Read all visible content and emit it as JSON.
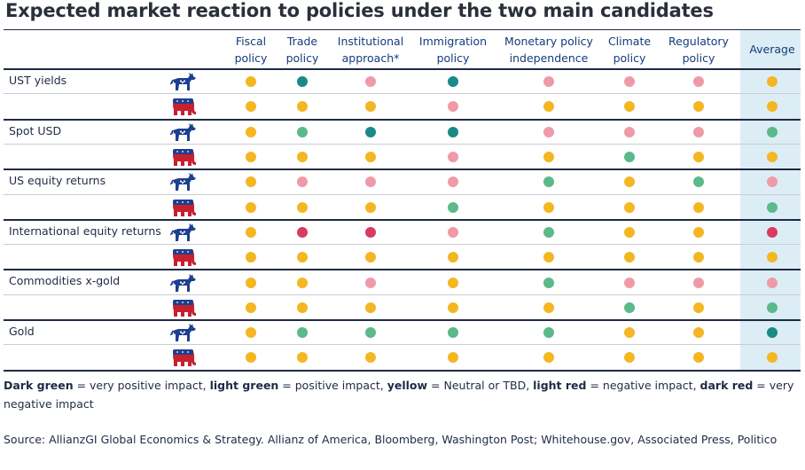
{
  "title": "Expected market reaction to policies under the two main candidates",
  "colors": {
    "dark_green": "#1a8a86",
    "light_green": "#5bb98a",
    "yellow": "#f4b622",
    "light_red": "#ee9aa7",
    "dark_red": "#d93a60",
    "democrat_blue": "#1d3f8f",
    "republican_red": "#c8202e"
  },
  "chart_data": {
    "type": "table",
    "columns": [
      "Fiscal\npolicy",
      "Trade\npolicy",
      "Institutional\napproach*",
      "Immigration\npolicy",
      "Monetary policy\nindependence",
      "Climate\npolicy",
      "Regulatory\npolicy",
      "Average"
    ],
    "rows": [
      {
        "label": "UST yields",
        "democrat": [
          "yellow",
          "dark_green",
          "light_red",
          "dark_green",
          "light_red",
          "light_red",
          "light_red",
          "yellow"
        ],
        "republican": [
          "yellow",
          "yellow",
          "yellow",
          "light_red",
          "yellow",
          "yellow",
          "yellow",
          "yellow"
        ]
      },
      {
        "label": "Spot USD",
        "democrat": [
          "yellow",
          "light_green",
          "dark_green",
          "dark_green",
          "light_red",
          "light_red",
          "light_red",
          "light_green"
        ],
        "republican": [
          "yellow",
          "yellow",
          "yellow",
          "light_red",
          "yellow",
          "light_green",
          "yellow",
          "yellow"
        ]
      },
      {
        "label": "US equity returns",
        "democrat": [
          "yellow",
          "light_red",
          "light_red",
          "light_red",
          "light_green",
          "yellow",
          "light_green",
          "light_red"
        ],
        "republican": [
          "yellow",
          "yellow",
          "yellow",
          "light_green",
          "yellow",
          "yellow",
          "yellow",
          "light_green"
        ]
      },
      {
        "label": "International equity returns",
        "democrat": [
          "yellow",
          "dark_red",
          "dark_red",
          "light_red",
          "light_green",
          "yellow",
          "yellow",
          "dark_red"
        ],
        "republican": [
          "yellow",
          "yellow",
          "yellow",
          "yellow",
          "yellow",
          "yellow",
          "yellow",
          "yellow"
        ]
      },
      {
        "label": "Commodities x-gold",
        "democrat": [
          "yellow",
          "yellow",
          "light_red",
          "yellow",
          "light_green",
          "light_red",
          "light_red",
          "light_red"
        ],
        "republican": [
          "yellow",
          "yellow",
          "yellow",
          "yellow",
          "yellow",
          "light_green",
          "yellow",
          "light_green"
        ]
      },
      {
        "label": "Gold",
        "democrat": [
          "yellow",
          "light_green",
          "light_green",
          "light_green",
          "light_green",
          "yellow",
          "yellow",
          "dark_green"
        ],
        "republican": [
          "yellow",
          "yellow",
          "yellow",
          "yellow",
          "yellow",
          "yellow",
          "yellow",
          "yellow"
        ]
      }
    ]
  },
  "legend": {
    "dark_green_label": "Dark green",
    "dark_green_text": " = very positive impact, ",
    "light_green_label": "light green",
    "light_green_text": " = positive impact, ",
    "yellow_label": "yellow",
    "yellow_text": " = Neutral or TBD, ",
    "light_red_label": "light red",
    "light_red_text": " = negative impact, ",
    "dark_red_label": "dark red",
    "dark_red_text": " = very negative impact"
  },
  "source": "Source: AllianzGI Global Economics & Strategy. Allianz of America, Bloomberg, Washington Post; Whitehouse.gov, Associated Press, Politico"
}
